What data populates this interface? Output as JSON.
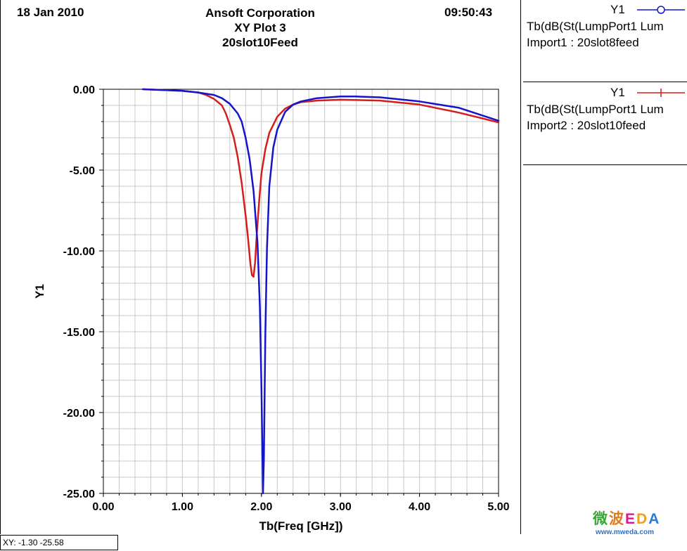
{
  "header": {
    "date": "18 Jan 2010",
    "company": "Ansoft Corporation",
    "plot_name": "XY Plot 3",
    "design": "20slot10Feed",
    "time": "09:50:43"
  },
  "legend": [
    {
      "axis": "Y1",
      "expr": "Tb(dB(St(LumpPort1 Lum",
      "source": "Import1 : 20slot8feed",
      "color": "#1414c8",
      "marker": "circle"
    },
    {
      "axis": "Y1",
      "expr": "Tb(dB(St(LumpPort1 Lum",
      "source": "Import2 : 20slot10feed",
      "color": "#d41e1e",
      "marker": "tick"
    }
  ],
  "status": {
    "text": "XY: -1.30 -25.58"
  },
  "watermark": {
    "logo_chars": [
      "微",
      "波",
      "E",
      "D",
      "A"
    ],
    "logo_colors": [
      "#3aa63a",
      "#e07a1a",
      "#d81b8c",
      "#f0a020",
      "#2a7ad8"
    ],
    "url": "www.mweda.com"
  },
  "chart_data": {
    "type": "line",
    "xlabel": "Tb(Freq [GHz])",
    "ylabel": "Y1",
    "xlim": [
      0,
      5
    ],
    "ylim": [
      -25,
      0
    ],
    "xticks": [
      "0.00",
      "1.00",
      "2.00",
      "3.00",
      "4.00",
      "5.00"
    ],
    "yticks": [
      "0.00",
      "-5.00",
      "-10.00",
      "-15.00",
      "-20.00",
      "-25.00"
    ],
    "grid": true,
    "series": [
      {
        "name": "Import1 : 20slot8feed",
        "color": "#1414c8",
        "x": [
          0.5,
          0.8,
          1.0,
          1.2,
          1.4,
          1.5,
          1.6,
          1.7,
          1.75,
          1.8,
          1.85,
          1.9,
          1.95,
          1.98,
          2.0,
          2.02,
          2.03,
          2.05,
          2.07,
          2.1,
          2.15,
          2.2,
          2.3,
          2.4,
          2.5,
          2.7,
          3.0,
          3.2,
          3.5,
          4.0,
          4.5,
          5.0
        ],
        "y": [
          0.0,
          -0.05,
          -0.1,
          -0.2,
          -0.35,
          -0.55,
          -0.9,
          -1.5,
          -2.0,
          -3.0,
          -4.3,
          -6.3,
          -9.5,
          -13.5,
          -18.5,
          -25.0,
          -23.0,
          -15.0,
          -9.8,
          -6.0,
          -3.6,
          -2.5,
          -1.4,
          -0.95,
          -0.75,
          -0.55,
          -0.45,
          -0.45,
          -0.5,
          -0.75,
          -1.15,
          -1.95
        ]
      },
      {
        "name": "Import2 : 20slot10feed",
        "color": "#d41e1e",
        "x": [
          0.5,
          0.8,
          1.0,
          1.2,
          1.3,
          1.4,
          1.5,
          1.55,
          1.6,
          1.65,
          1.7,
          1.75,
          1.8,
          1.83,
          1.86,
          1.88,
          1.9,
          1.92,
          1.94,
          1.97,
          2.0,
          2.05,
          2.1,
          2.2,
          2.3,
          2.4,
          2.5,
          2.7,
          3.0,
          3.5,
          4.0,
          4.5,
          5.0
        ],
        "y": [
          0.0,
          -0.05,
          -0.1,
          -0.2,
          -0.35,
          -0.6,
          -1.0,
          -1.5,
          -2.2,
          -3.0,
          -4.2,
          -5.8,
          -7.8,
          -9.2,
          -10.8,
          -11.5,
          -11.6,
          -10.7,
          -9.0,
          -7.0,
          -5.2,
          -3.7,
          -2.7,
          -1.7,
          -1.2,
          -0.95,
          -0.8,
          -0.7,
          -0.65,
          -0.7,
          -0.95,
          -1.45,
          -2.05
        ]
      }
    ]
  }
}
